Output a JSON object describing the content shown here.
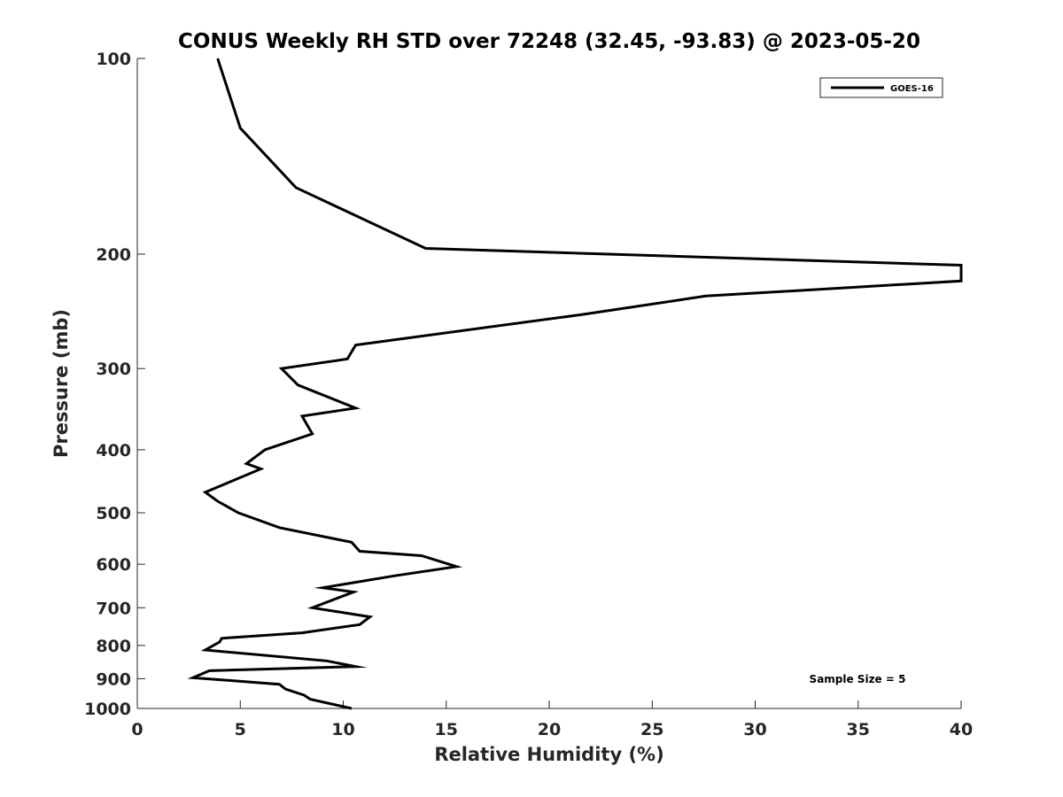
{
  "chart_data": {
    "type": "line",
    "title": "CONUS Weekly RH STD over 72248 (32.45, -93.83) @ 2023-05-20",
    "xlabel": "Relative Humidity (%)",
    "ylabel": "Pressure (mb)",
    "xlim": [
      0,
      40
    ],
    "ylim": [
      100,
      1000
    ],
    "y_scale": "log",
    "y_reversed": true,
    "x_ticks": [
      0,
      5,
      10,
      15,
      20,
      25,
      30,
      35,
      40
    ],
    "y_ticks": [
      100,
      200,
      300,
      400,
      500,
      600,
      700,
      800,
      900,
      1000
    ],
    "legend_position": "top-right",
    "grid": false,
    "annotation": "Sample Size = 5",
    "series": [
      {
        "name": "GOES-16",
        "color": "#000000",
        "x": [
          3.9,
          5.0,
          7.7,
          14.0,
          40.0,
          40.0,
          27.6,
          21.5,
          10.6,
          10.2,
          7.0,
          7.8,
          10.6,
          8.0,
          8.5,
          6.2,
          5.3,
          6.0,
          3.3,
          3.9,
          4.9,
          6.9,
          10.4,
          10.8,
          13.8,
          15.5,
          12.5,
          9.0,
          10.5,
          9.9,
          8.5,
          11.3,
          10.8,
          8.0,
          4.1,
          4.0,
          3.3,
          9.2,
          10.6,
          3.5,
          2.7,
          6.9,
          7.2,
          8.1,
          8.4,
          10.4
        ],
        "y": [
          100,
          128,
          158,
          196,
          208,
          220,
          232,
          248,
          276,
          290,
          300,
          318,
          345,
          355,
          378,
          400,
          420,
          428,
          465,
          480,
          500,
          527,
          555,
          573,
          582,
          605,
          625,
          652,
          662,
          673,
          700,
          723,
          743,
          765,
          780,
          790,
          813,
          845,
          862,
          875,
          897,
          918,
          934,
          954,
          968,
          1000
        ]
      }
    ]
  }
}
